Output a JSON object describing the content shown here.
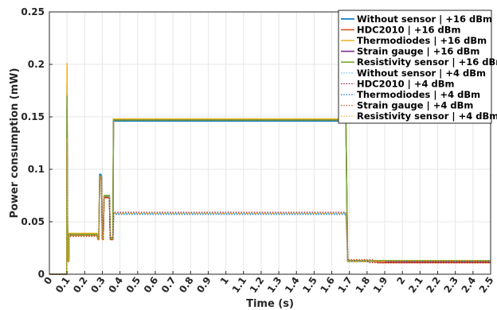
{
  "chart_data": {
    "type": "line",
    "xlabel": "Time (s)",
    "ylabel": "Power consumption (mW)",
    "xlim": [
      0,
      2.5
    ],
    "ylim": [
      0,
      0.25
    ],
    "grid": true,
    "legend_position": "top-right",
    "x_ticks": [
      "0",
      "0.1",
      "0.2",
      "0.3",
      "0.4",
      "0.5",
      "0.6",
      "0.7",
      "0.8",
      "0.9",
      "1",
      "1.1",
      "1.2",
      "1.3",
      "1.4",
      "1.5",
      "1.6",
      "1.7",
      "1.8",
      "1.9",
      "2",
      "2.1",
      "2.2",
      "2.3",
      "2.4",
      "2.5"
    ],
    "y_ticks": [
      "0",
      "0.05",
      "0.1",
      "0.15",
      "0.2",
      "0.25"
    ],
    "series": [
      {
        "name": "Without sensor | +16 dBm",
        "color": "#0072BD",
        "dash": "solid",
        "points": [
          [
            0,
            0
          ],
          [
            0.098,
            0
          ],
          [
            0.1,
            0.18
          ],
          [
            0.103,
            0.05
          ],
          [
            0.106,
            0.013
          ],
          [
            0.11,
            0.013
          ],
          [
            0.112,
            0.038
          ],
          [
            0.27,
            0.038
          ],
          [
            0.275,
            0.034
          ],
          [
            0.28,
            0.034
          ],
          [
            0.285,
            0.095
          ],
          [
            0.295,
            0.095
          ],
          [
            0.3,
            0.034
          ],
          [
            0.305,
            0.034
          ],
          [
            0.31,
            0.075
          ],
          [
            0.34,
            0.075
          ],
          [
            0.345,
            0.034
          ],
          [
            0.36,
            0.034
          ],
          [
            0.363,
            0.146
          ],
          [
            1.68,
            0.146
          ],
          [
            1.69,
            0.013
          ],
          [
            2.5,
            0.013
          ]
        ]
      },
      {
        "name": "HDC2010 | +16 dBm",
        "color": "#D95319",
        "dash": "solid",
        "points": [
          [
            0,
            0
          ],
          [
            0.098,
            0
          ],
          [
            0.1,
            0.13
          ],
          [
            0.103,
            0.04
          ],
          [
            0.106,
            0.012
          ],
          [
            0.11,
            0.012
          ],
          [
            0.112,
            0.037
          ],
          [
            0.27,
            0.037
          ],
          [
            0.275,
            0.033
          ],
          [
            0.28,
            0.033
          ],
          [
            0.285,
            0.091
          ],
          [
            0.295,
            0.091
          ],
          [
            0.3,
            0.033
          ],
          [
            0.305,
            0.033
          ],
          [
            0.31,
            0.073
          ],
          [
            0.34,
            0.073
          ],
          [
            0.345,
            0.033
          ],
          [
            0.36,
            0.033
          ],
          [
            0.363,
            0.147
          ],
          [
            1.68,
            0.147
          ],
          [
            1.69,
            0.012
          ],
          [
            1.85,
            0.012
          ],
          [
            1.86,
            0.011
          ],
          [
            2.5,
            0.011
          ]
        ]
      },
      {
        "name": "Thermodiodes | +16 dBm",
        "color": "#EDB120",
        "dash": "solid",
        "points": [
          [
            0,
            0
          ],
          [
            0.098,
            0
          ],
          [
            0.1,
            0.201
          ],
          [
            0.103,
            0.05
          ],
          [
            0.106,
            0.014
          ],
          [
            0.11,
            0.014
          ],
          [
            0.112,
            0.039
          ],
          [
            0.27,
            0.039
          ],
          [
            0.275,
            0.035
          ],
          [
            0.28,
            0.035
          ],
          [
            0.285,
            0.092
          ],
          [
            0.295,
            0.092
          ],
          [
            0.3,
            0.035
          ],
          [
            0.305,
            0.035
          ],
          [
            0.31,
            0.075
          ],
          [
            0.34,
            0.075
          ],
          [
            0.345,
            0.035
          ],
          [
            0.36,
            0.035
          ],
          [
            0.363,
            0.148
          ],
          [
            1.68,
            0.148
          ],
          [
            1.69,
            0.012
          ],
          [
            2.5,
            0.012
          ]
        ]
      },
      {
        "name": "Strain gauge | +16 dBm",
        "color": "#7E2F8E",
        "dash": "solid",
        "points": [
          [
            0,
            0
          ],
          [
            0.098,
            0
          ],
          [
            0.1,
            0.16
          ],
          [
            0.103,
            0.045
          ],
          [
            0.106,
            0.013
          ],
          [
            0.11,
            0.013
          ],
          [
            0.112,
            0.038
          ],
          [
            0.27,
            0.038
          ],
          [
            0.275,
            0.034
          ],
          [
            0.28,
            0.034
          ],
          [
            0.285,
            0.093
          ],
          [
            0.295,
            0.093
          ],
          [
            0.3,
            0.034
          ],
          [
            0.305,
            0.034
          ],
          [
            0.31,
            0.074
          ],
          [
            0.34,
            0.074
          ],
          [
            0.345,
            0.034
          ],
          [
            0.36,
            0.034
          ],
          [
            0.363,
            0.147
          ],
          [
            1.68,
            0.147
          ],
          [
            1.69,
            0.013
          ],
          [
            1.9,
            0.013
          ],
          [
            1.91,
            0.012
          ],
          [
            2.5,
            0.012
          ]
        ]
      },
      {
        "name": "Resistivity sensor | +16 dBm",
        "color": "#77AC30",
        "dash": "solid",
        "points": [
          [
            0,
            0
          ],
          [
            0.098,
            0
          ],
          [
            0.1,
            0.17
          ],
          [
            0.103,
            0.045
          ],
          [
            0.106,
            0.013
          ],
          [
            0.11,
            0.013
          ],
          [
            0.112,
            0.038
          ],
          [
            0.27,
            0.038
          ],
          [
            0.275,
            0.034
          ],
          [
            0.28,
            0.034
          ],
          [
            0.285,
            0.094
          ],
          [
            0.295,
            0.094
          ],
          [
            0.3,
            0.034
          ],
          [
            0.305,
            0.034
          ],
          [
            0.31,
            0.075
          ],
          [
            0.34,
            0.075
          ],
          [
            0.345,
            0.034
          ],
          [
            0.36,
            0.034
          ],
          [
            0.363,
            0.147
          ],
          [
            1.68,
            0.147
          ],
          [
            1.69,
            0.013
          ],
          [
            2.5,
            0.013
          ]
        ]
      },
      {
        "name": "Without sensor | +4 dBm",
        "color": "#4DBEEE",
        "dash": "dotted",
        "points": [
          [
            0,
            0
          ],
          [
            0.098,
            0
          ],
          [
            0.1,
            0.12
          ],
          [
            0.103,
            0.04
          ],
          [
            0.106,
            0.012
          ],
          [
            0.11,
            0.012
          ],
          [
            0.112,
            0.036
          ],
          [
            0.27,
            0.036
          ],
          [
            0.275,
            0.033
          ],
          [
            0.28,
            0.033
          ],
          [
            0.285,
            0.096
          ],
          [
            0.295,
            0.096
          ],
          [
            0.3,
            0.033
          ],
          [
            0.305,
            0.033
          ],
          [
            0.31,
            0.074
          ],
          [
            0.34,
            0.074
          ],
          [
            0.345,
            0.035
          ],
          [
            0.36,
            0.035
          ],
          [
            0.365,
            0.058
          ],
          [
            1.68,
            0.058
          ],
          [
            1.69,
            0.012
          ],
          [
            2.5,
            0.012
          ]
        ]
      },
      {
        "name": "HDC2010 | +4 dBm",
        "color": "#A2142F",
        "dash": "dotted",
        "points": [
          [
            0,
            0
          ],
          [
            0.098,
            0
          ],
          [
            0.1,
            0.11
          ],
          [
            0.103,
            0.04
          ],
          [
            0.106,
            0.012
          ],
          [
            0.11,
            0.012
          ],
          [
            0.112,
            0.037
          ],
          [
            0.27,
            0.037
          ],
          [
            0.275,
            0.033
          ],
          [
            0.28,
            0.033
          ],
          [
            0.285,
            0.092
          ],
          [
            0.295,
            0.092
          ],
          [
            0.3,
            0.033
          ],
          [
            0.305,
            0.033
          ],
          [
            0.31,
            0.073
          ],
          [
            0.34,
            0.073
          ],
          [
            0.345,
            0.035
          ],
          [
            0.36,
            0.035
          ],
          [
            0.365,
            0.059
          ],
          [
            1.68,
            0.059
          ],
          [
            1.69,
            0.013
          ],
          [
            1.8,
            0.013
          ],
          [
            1.81,
            0.011
          ],
          [
            2.5,
            0.011
          ]
        ]
      },
      {
        "name": "Thermodiodes | +4 dBm",
        "color": "#0072BD",
        "dash": "dotted",
        "points": [
          [
            0,
            0
          ],
          [
            0.098,
            0
          ],
          [
            0.1,
            0.125
          ],
          [
            0.103,
            0.04
          ],
          [
            0.106,
            0.012
          ],
          [
            0.11,
            0.012
          ],
          [
            0.112,
            0.037
          ],
          [
            0.27,
            0.037
          ],
          [
            0.275,
            0.033
          ],
          [
            0.28,
            0.033
          ],
          [
            0.285,
            0.094
          ],
          [
            0.295,
            0.094
          ],
          [
            0.3,
            0.033
          ],
          [
            0.305,
            0.033
          ],
          [
            0.31,
            0.074
          ],
          [
            0.34,
            0.074
          ],
          [
            0.345,
            0.035
          ],
          [
            0.36,
            0.035
          ],
          [
            0.365,
            0.057
          ],
          [
            1.68,
            0.057
          ],
          [
            1.69,
            0.013
          ],
          [
            1.95,
            0.013
          ],
          [
            1.96,
            0.012
          ],
          [
            2.5,
            0.012
          ]
        ]
      },
      {
        "name": "Strain gauge | +4 dBm",
        "color": "#D95319",
        "dash": "dotted",
        "points": [
          [
            0,
            0
          ],
          [
            0.098,
            0
          ],
          [
            0.1,
            0.12
          ],
          [
            0.103,
            0.04
          ],
          [
            0.106,
            0.012
          ],
          [
            0.11,
            0.012
          ],
          [
            0.112,
            0.036
          ],
          [
            0.27,
            0.036
          ],
          [
            0.275,
            0.033
          ],
          [
            0.28,
            0.033
          ],
          [
            0.285,
            0.09
          ],
          [
            0.295,
            0.09
          ],
          [
            0.3,
            0.033
          ],
          [
            0.305,
            0.033
          ],
          [
            0.31,
            0.073
          ],
          [
            0.34,
            0.073
          ],
          [
            0.345,
            0.035
          ],
          [
            0.36,
            0.035
          ],
          [
            0.365,
            0.058
          ],
          [
            1.68,
            0.058
          ],
          [
            1.69,
            0.014
          ],
          [
            1.83,
            0.014
          ],
          [
            1.84,
            0.012
          ],
          [
            2.5,
            0.012
          ]
        ]
      },
      {
        "name": "Resistivity sensor | +4 dBm",
        "color": "#EDB120",
        "dash": "dotted",
        "points": [
          [
            0,
            0
          ],
          [
            0.098,
            0
          ],
          [
            0.1,
            0.13
          ],
          [
            0.103,
            0.04
          ],
          [
            0.106,
            0.012
          ],
          [
            0.11,
            0.012
          ],
          [
            0.112,
            0.037
          ],
          [
            0.27,
            0.037
          ],
          [
            0.275,
            0.033
          ],
          [
            0.28,
            0.033
          ],
          [
            0.285,
            0.093
          ],
          [
            0.295,
            0.093
          ],
          [
            0.3,
            0.033
          ],
          [
            0.305,
            0.033
          ],
          [
            0.31,
            0.074
          ],
          [
            0.34,
            0.074
          ],
          [
            0.345,
            0.035
          ],
          [
            0.36,
            0.035
          ],
          [
            0.365,
            0.058
          ],
          [
            1.68,
            0.058
          ],
          [
            1.69,
            0.013
          ],
          [
            2.5,
            0.013
          ]
        ]
      }
    ]
  }
}
